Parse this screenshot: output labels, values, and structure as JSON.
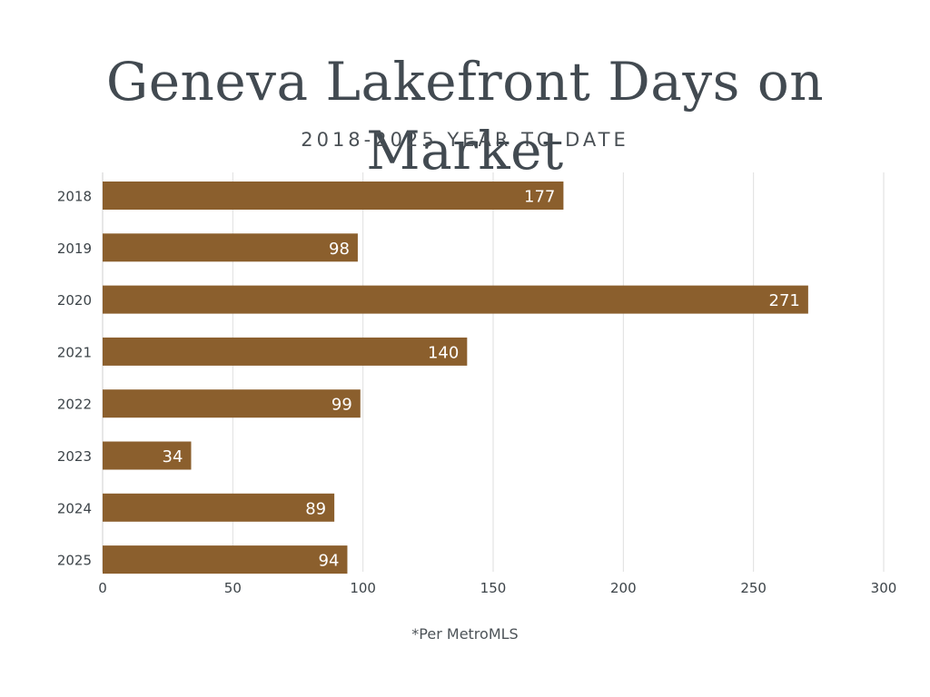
{
  "title": "Geneva Lakefront Days on Market",
  "subtitle": "2018-2025 YEAR TO DATE",
  "footnote": "*Per MetroMLS",
  "colors": {
    "bar": "#8b5f2d",
    "grid": "#dedede",
    "text": "#3d4449",
    "bar_label": "#ffffff"
  },
  "chart_data": {
    "type": "bar",
    "orientation": "horizontal",
    "categories": [
      "2018",
      "2019",
      "2020",
      "2021",
      "2022",
      "2023",
      "2024",
      "2025"
    ],
    "values": [
      177,
      98,
      271,
      140,
      99,
      34,
      89,
      94
    ],
    "data_labels": [
      "177",
      "98",
      "271",
      "140",
      "99",
      "34",
      "89",
      "94"
    ],
    "xlim": [
      0,
      300
    ],
    "xticks": [
      0,
      50,
      100,
      150,
      200,
      250,
      300
    ],
    "xtick_labels": [
      "0",
      "50",
      "100",
      "150",
      "200",
      "250",
      "300"
    ],
    "grid": true,
    "legend": false
  }
}
